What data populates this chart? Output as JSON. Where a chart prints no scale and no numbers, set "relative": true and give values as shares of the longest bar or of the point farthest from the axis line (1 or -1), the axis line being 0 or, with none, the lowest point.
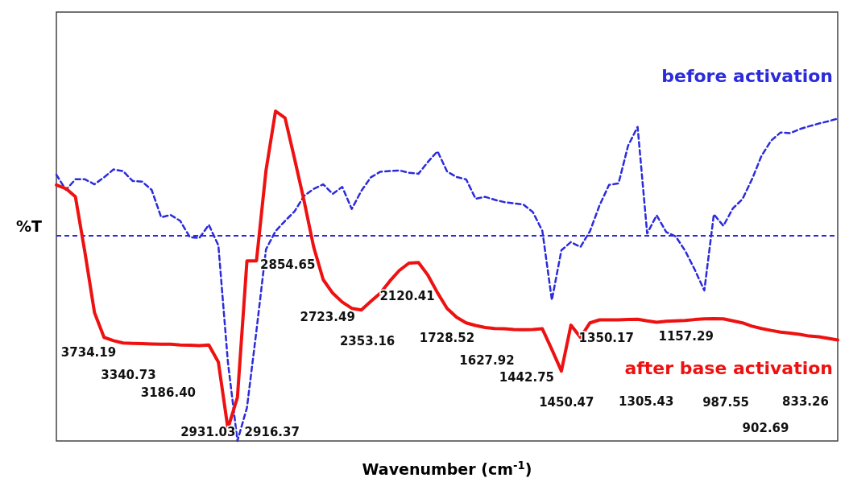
{
  "chart_data": {
    "type": "line",
    "relative": true,
    "xlabel": "Wavenumber (cm$^{-1}$)",
    "ylabel": "%T",
    "legend": "right",
    "marker": "none",
    "categories": [
      null,
      null,
      null,
      null,
      null,
      null,
      null,
      null,
      null,
      null,
      null,
      null,
      null,
      null,
      null,
      null,
      null,
      null,
      null,
      null,
      null,
      null,
      null,
      null,
      null,
      null,
      null,
      null,
      null,
      null,
      null,
      null,
      null,
      null,
      null,
      null,
      null,
      null,
      null,
      null,
      null,
      null,
      null,
      null,
      null,
      null,
      null,
      null,
      null,
      null,
      null,
      null,
      null,
      null,
      null,
      null,
      null,
      null,
      null,
      null,
      null,
      null,
      null,
      null,
      null,
      null,
      null,
      null,
      null,
      null,
      null,
      null,
      null,
      null,
      null,
      null,
      null,
      null,
      null,
      null,
      null,
      null,
      null
    ],
    "series": [
      {
        "name": "before activation",
        "color": "#2b2bdc",
        "line_style": "dashed",
        "values": [
          0.807,
          0.761,
          0.793,
          0.793,
          0.778,
          0.799,
          0.823,
          0.818,
          0.788,
          0.786,
          0.761,
          0.678,
          0.685,
          0.667,
          0.618,
          0.615,
          0.655,
          0.593,
          0.239,
          0,
          0.101,
          0.335,
          0.581,
          0.636,
          0.667,
          0.696,
          0.743,
          0.764,
          0.778,
          0.749,
          0.77,
          0.703,
          0.758,
          0.799,
          0.816,
          0.818,
          0.82,
          0.813,
          0.81,
          0.846,
          0.878,
          0.817,
          0.8,
          0.793,
          0.734,
          0.74,
          0.731,
          0.724,
          0.72,
          0.717,
          0.694,
          0.637,
          0.427,
          0.578,
          0.603,
          0.588,
          0.636,
          0.714,
          0.776,
          0.781,
          0.895,
          0.952,
          0.629,
          0.684,
          0.633,
          0.62,
          0.576,
          0.519,
          0.456,
          0.687,
          0.652,
          0.705,
          0.733,
          0.793,
          0.864,
          0.91,
          0.935,
          0.933,
          0.945,
          0.954,
          0.962,
          0.969,
          0.977
        ]
      },
      {
        "name": "after base activation",
        "color": "#ee1111",
        "line_style": "solid",
        "values": [
          0.776,
          0.765,
          0.74,
          0.571,
          0.389,
          0.314,
          0.304,
          0.297,
          0.296,
          0.295,
          0.294,
          0.293,
          0.293,
          0.291,
          0.29,
          0.289,
          0.291,
          0.239,
          0.038,
          0.132,
          0.546,
          0.546,
          0.82,
          1,
          0.979,
          0.855,
          0.727,
          0.588,
          0.489,
          0.448,
          0.421,
          0.402,
          0.397,
          0.423,
          0.448,
          0.485,
          0.517,
          0.539,
          0.541,
          0.502,
          0.449,
          0.402,
          0.375,
          0.358,
          0.35,
          0.344,
          0.341,
          0.34,
          0.338,
          0.337,
          0.338,
          0.34,
          0.277,
          0.212,
          0.351,
          0.314,
          0.358,
          0.367,
          0.367,
          0.367,
          0.368,
          0.369,
          0.364,
          0.36,
          0.363,
          0.364,
          0.365,
          0.368,
          0.37,
          0.371,
          0.37,
          0.364,
          0.358,
          0.348,
          0.341,
          0.335,
          0.33,
          0.327,
          0.323,
          0.318,
          0.316,
          0.311,
          0.306
        ]
      }
    ],
    "ref_lines": [
      {
        "axis": "y",
        "value": 0.622,
        "color": "#2b2bdc",
        "line_style": "dashed"
      }
    ],
    "annotations": [
      "3734.19",
      "3340.73",
      "3186.40",
      "2931.03",
      "2916.37",
      "2854.65",
      "2723.49",
      "2353.16",
      "2120.41",
      "1728.52",
      "1627.92",
      "1442.75",
      "1450.47",
      "1350.17",
      "1305.43",
      "1157.29",
      "987.55",
      "902.69",
      "833.26"
    ]
  }
}
